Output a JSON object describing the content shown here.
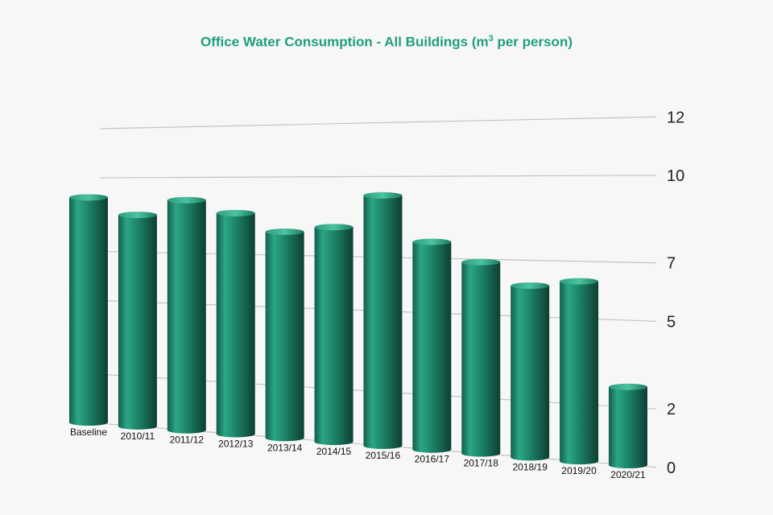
{
  "chart_data": {
    "type": "bar",
    "title_main": "Office Water Consumption - All Buildings (m",
    "title_sup": "3",
    "title_end": " per person)",
    "categories": [
      "Baseline",
      "2010/11",
      "2011/12",
      "2012/13",
      "2013/14",
      "2014/15",
      "2015/16",
      "2016/17",
      "2017/18",
      "2018/19",
      "2019/20",
      "2020/21"
    ],
    "values": [
      9.2,
      8.5,
      9.1,
      8.6,
      7.9,
      8.1,
      9.3,
      7.6,
      6.9,
      6.1,
      6.3,
      2.7
    ],
    "yticks": [
      "0",
      "2",
      "5",
      "7",
      "10",
      "12"
    ],
    "ylim": [
      0,
      12.5
    ],
    "grid": true,
    "legend": "none",
    "bar_color": "#1f8a6e"
  }
}
